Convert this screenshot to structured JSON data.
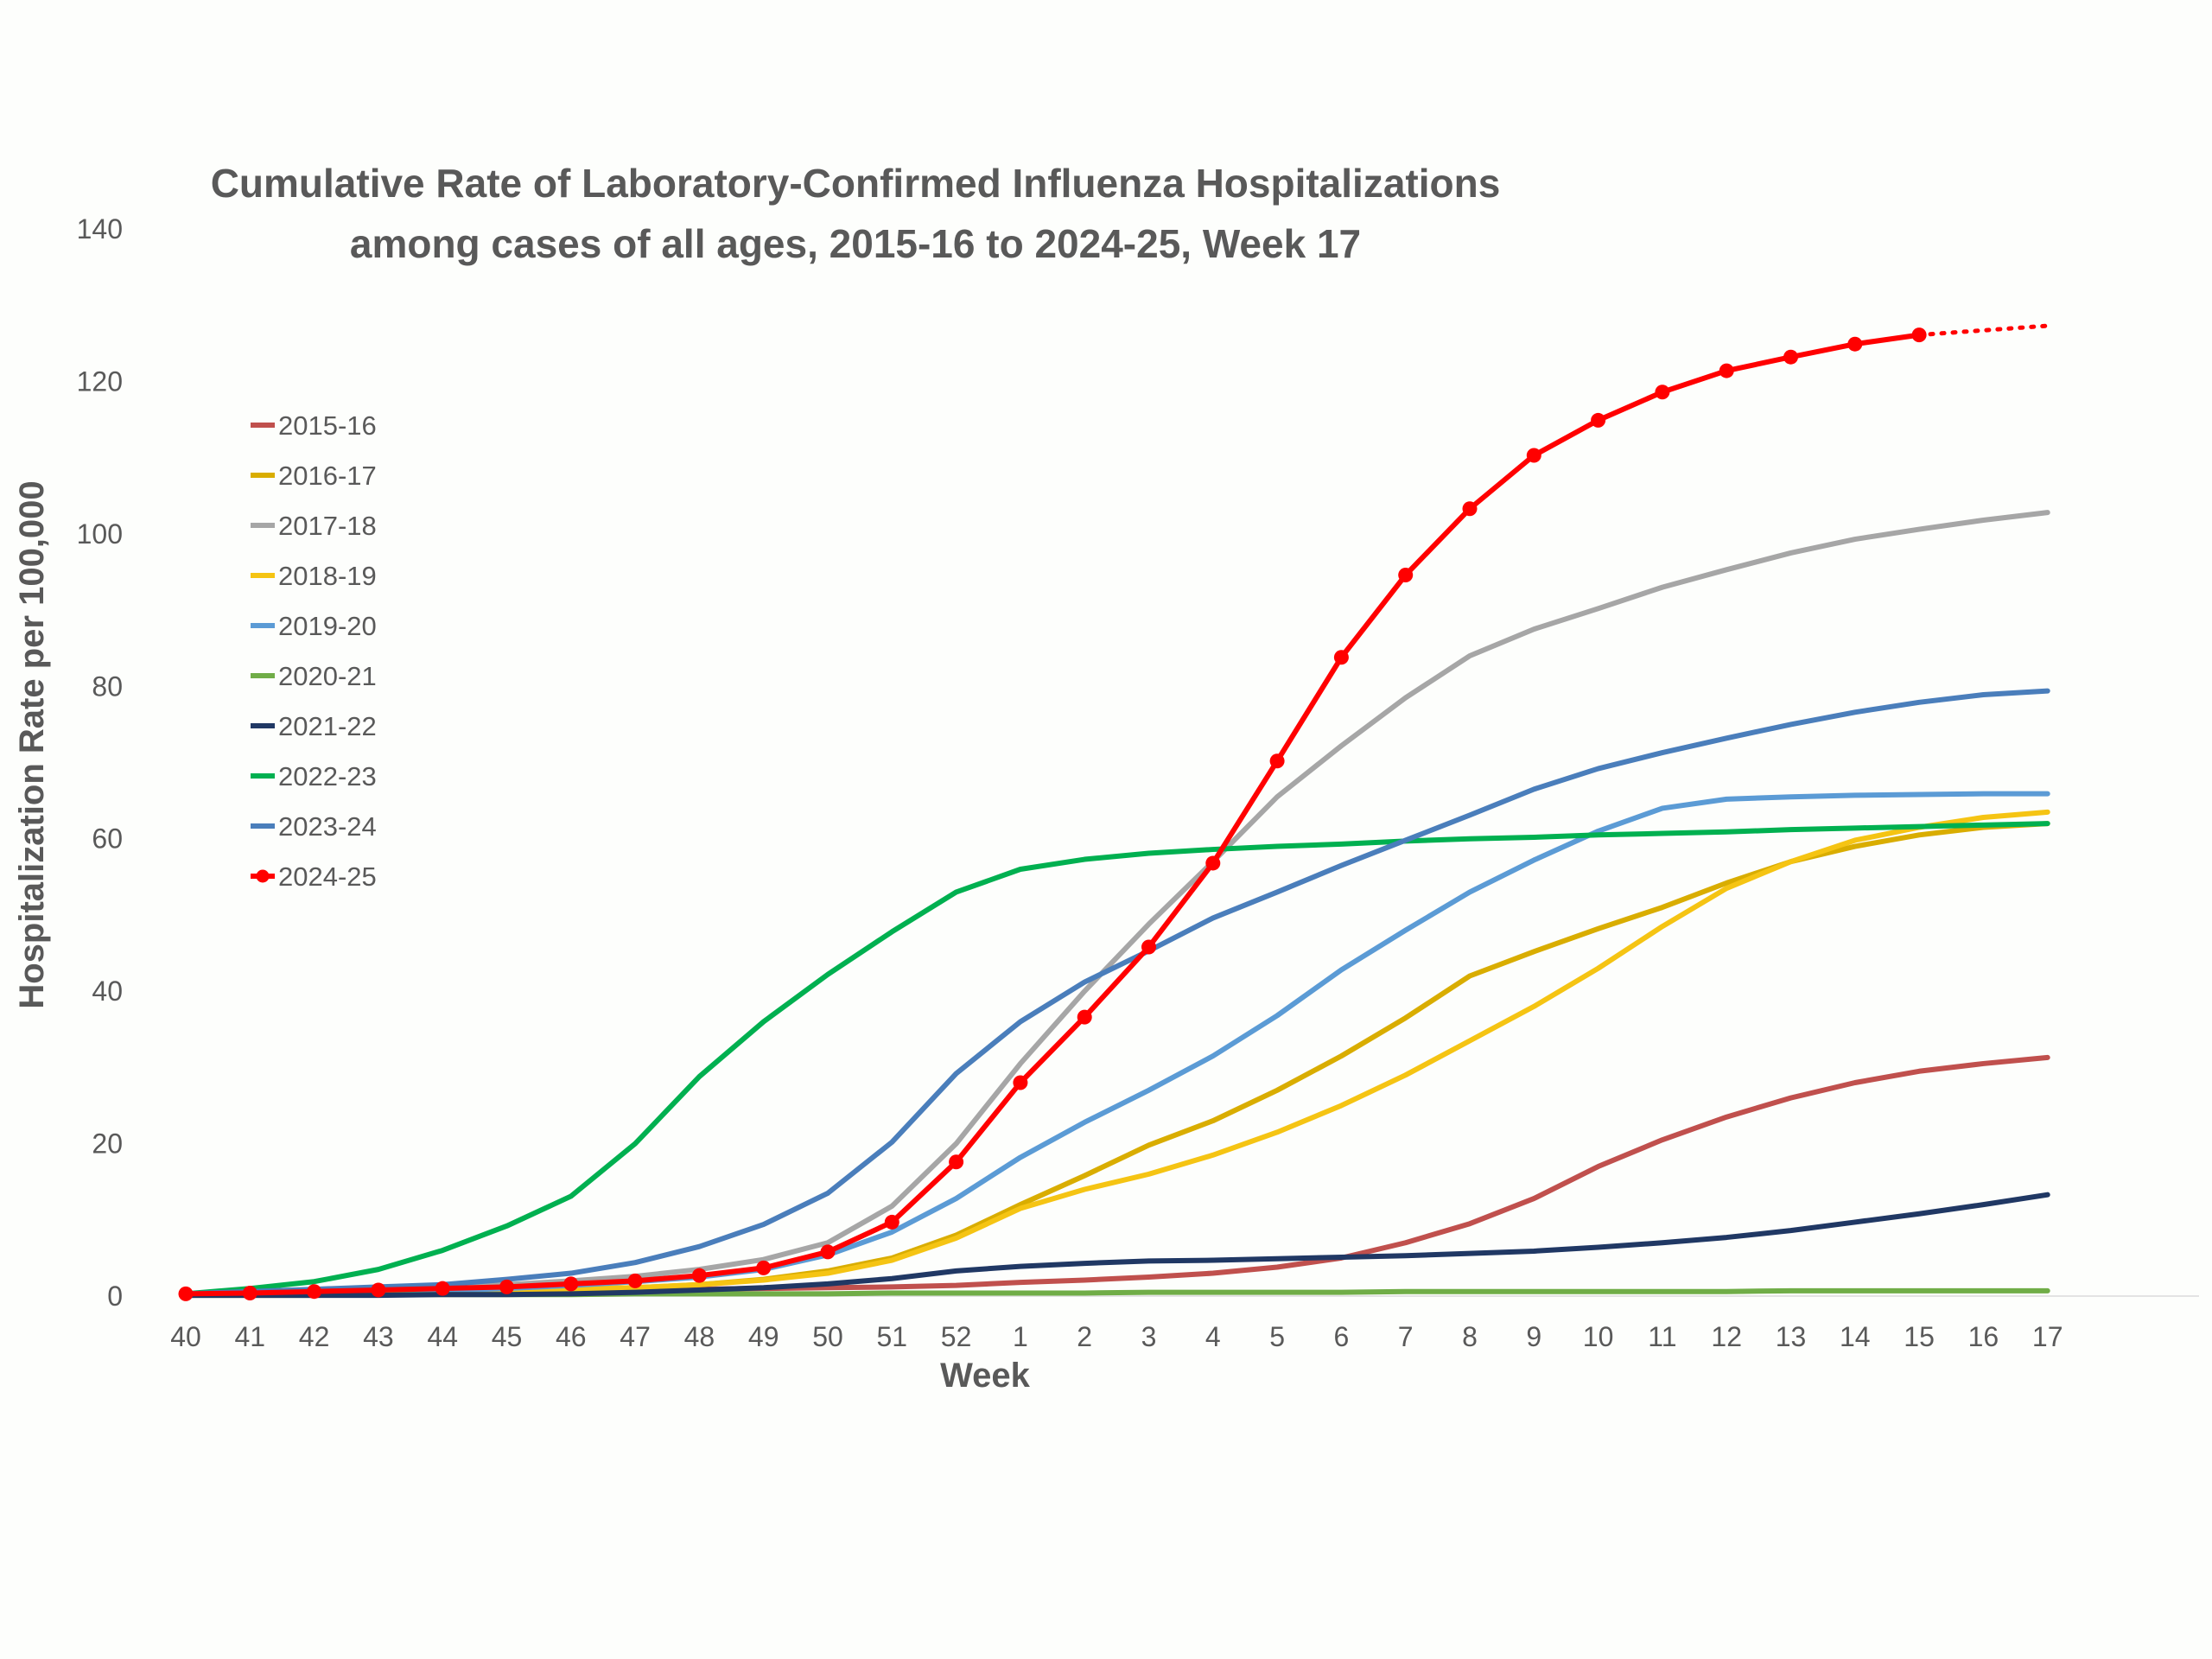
{
  "chart_data": {
    "type": "line",
    "title_line1": "Cumulative Rate of Laboratory-Confirmed Influenza Hospitalizations",
    "title_line2": "among cases of all ages, 2015-16 to 2024-25, Week 17",
    "xlabel": "Week",
    "ylabel": "Hospitalization Rate per 100,000",
    "ylim": [
      0,
      140
    ],
    "yticks": [
      "0",
      "20",
      "40",
      "60",
      "80",
      "100",
      "120",
      "140"
    ],
    "categories": [
      "40",
      "41",
      "42",
      "43",
      "44",
      "45",
      "46",
      "47",
      "48",
      "49",
      "50",
      "51",
      "52",
      "1",
      "2",
      "3",
      "4",
      "5",
      "6",
      "7",
      "8",
      "9",
      "10",
      "11",
      "12",
      "13",
      "14",
      "15",
      "16",
      "17"
    ],
    "legend_position": "left",
    "grid": false,
    "series": [
      {
        "name": "2015-16",
        "color": "#c0504d",
        "values": [
          0.1,
          0.2,
          0.3,
          0.4,
          0.5,
          0.6,
          0.7,
          0.8,
          0.9,
          1.0,
          1.1,
          1.2,
          1.4,
          1.8,
          2.1,
          2.5,
          3.0,
          3.8,
          5.0,
          7.0,
          9.5,
          12.8,
          17.0,
          20.5,
          23.5,
          26.0,
          28.0,
          29.5,
          30.5,
          31.3
        ]
      },
      {
        "name": "2016-17",
        "color": "#d9ad00",
        "values": [
          0.1,
          0.2,
          0.3,
          0.4,
          0.5,
          0.7,
          0.9,
          1.1,
          1.5,
          2.2,
          3.3,
          5.0,
          8.0,
          12.0,
          15.8,
          19.8,
          23.0,
          27.0,
          31.5,
          36.5,
          42.0,
          45.2,
          48.2,
          51.0,
          54.2,
          57.0,
          59.0,
          60.5,
          61.5,
          62.0
        ]
      },
      {
        "name": "2017-18",
        "color": "#a6a6a6",
        "values": [
          0.2,
          0.3,
          0.5,
          0.8,
          1.1,
          1.5,
          2.0,
          2.6,
          3.5,
          4.8,
          7.0,
          11.8,
          20.0,
          30.5,
          40.0,
          48.8,
          57.0,
          65.5,
          72.2,
          78.5,
          84.0,
          87.5,
          90.2,
          93.0,
          95.3,
          97.5,
          99.3,
          100.6,
          101.8,
          102.8
        ]
      },
      {
        "name": "2018-19",
        "color": "#f5c413",
        "values": [
          0.1,
          0.2,
          0.3,
          0.4,
          0.5,
          0.7,
          0.9,
          1.1,
          1.5,
          2.1,
          3.0,
          4.7,
          7.6,
          11.5,
          14.0,
          16.0,
          18.5,
          21.5,
          25.0,
          29.0,
          33.5,
          38.0,
          43.0,
          48.5,
          53.5,
          57.0,
          59.8,
          61.5,
          62.8,
          63.5
        ]
      },
      {
        "name": "2019-20",
        "color": "#5b9bd5",
        "values": [
          0.1,
          0.2,
          0.3,
          0.5,
          0.7,
          1.0,
          1.4,
          1.9,
          2.5,
          3.5,
          5.4,
          8.4,
          12.8,
          18.2,
          22.8,
          27.0,
          31.5,
          36.8,
          42.8,
          48.0,
          53.0,
          57.2,
          61.0,
          64.0,
          65.2,
          65.5,
          65.7,
          65.8,
          65.9,
          65.9
        ]
      },
      {
        "name": "2020-21",
        "color": "#70ad47",
        "values": [
          0.1,
          0.1,
          0.1,
          0.2,
          0.2,
          0.2,
          0.2,
          0.3,
          0.3,
          0.3,
          0.3,
          0.4,
          0.4,
          0.4,
          0.4,
          0.5,
          0.5,
          0.5,
          0.5,
          0.6,
          0.6,
          0.6,
          0.6,
          0.6,
          0.6,
          0.7,
          0.7,
          0.7,
          0.7,
          0.7
        ]
      },
      {
        "name": "2021-22",
        "color": "#203864",
        "values": [
          0.1,
          0.1,
          0.1,
          0.1,
          0.2,
          0.2,
          0.3,
          0.5,
          0.8,
          1.1,
          1.6,
          2.3,
          3.3,
          3.9,
          4.3,
          4.6,
          4.7,
          4.9,
          5.1,
          5.3,
          5.6,
          5.9,
          6.4,
          7.0,
          7.7,
          8.6,
          9.7,
          10.8,
          12.0,
          13.3
        ]
      },
      {
        "name": "2022-23",
        "color": "#00b050",
        "values": [
          0.3,
          1.0,
          1.9,
          3.5,
          6.0,
          9.2,
          13.1,
          20.0,
          28.8,
          36.0,
          42.2,
          47.8,
          53.0,
          56.0,
          57.3,
          58.1,
          58.6,
          59.0,
          59.3,
          59.7,
          60.0,
          60.2,
          60.5,
          60.7,
          60.9,
          61.2,
          61.4,
          61.6,
          61.8,
          62.0
        ]
      },
      {
        "name": "2023-24",
        "color": "#4a7ebb",
        "values": [
          0.3,
          0.6,
          0.9,
          1.2,
          1.5,
          2.2,
          3.0,
          4.4,
          6.5,
          9.4,
          13.5,
          20.2,
          29.2,
          36.0,
          41.2,
          45.3,
          49.6,
          53.0,
          56.5,
          59.8,
          63.1,
          66.5,
          69.2,
          71.3,
          73.2,
          75.0,
          76.6,
          77.9,
          78.9,
          79.4
        ]
      },
      {
        "name": "2024-25",
        "color": "#ff0000",
        "markers": true,
        "dotted_from_index": 27,
        "values": [
          0.3,
          0.4,
          0.6,
          0.8,
          1.0,
          1.2,
          1.6,
          2.0,
          2.7,
          3.7,
          5.8,
          9.7,
          17.6,
          28.0,
          36.6,
          45.8,
          56.8,
          70.2,
          83.8,
          94.6,
          103.3,
          110.3,
          114.9,
          118.6,
          121.4,
          123.2,
          124.9,
          126.1,
          126.7,
          127.3
        ]
      }
    ]
  }
}
